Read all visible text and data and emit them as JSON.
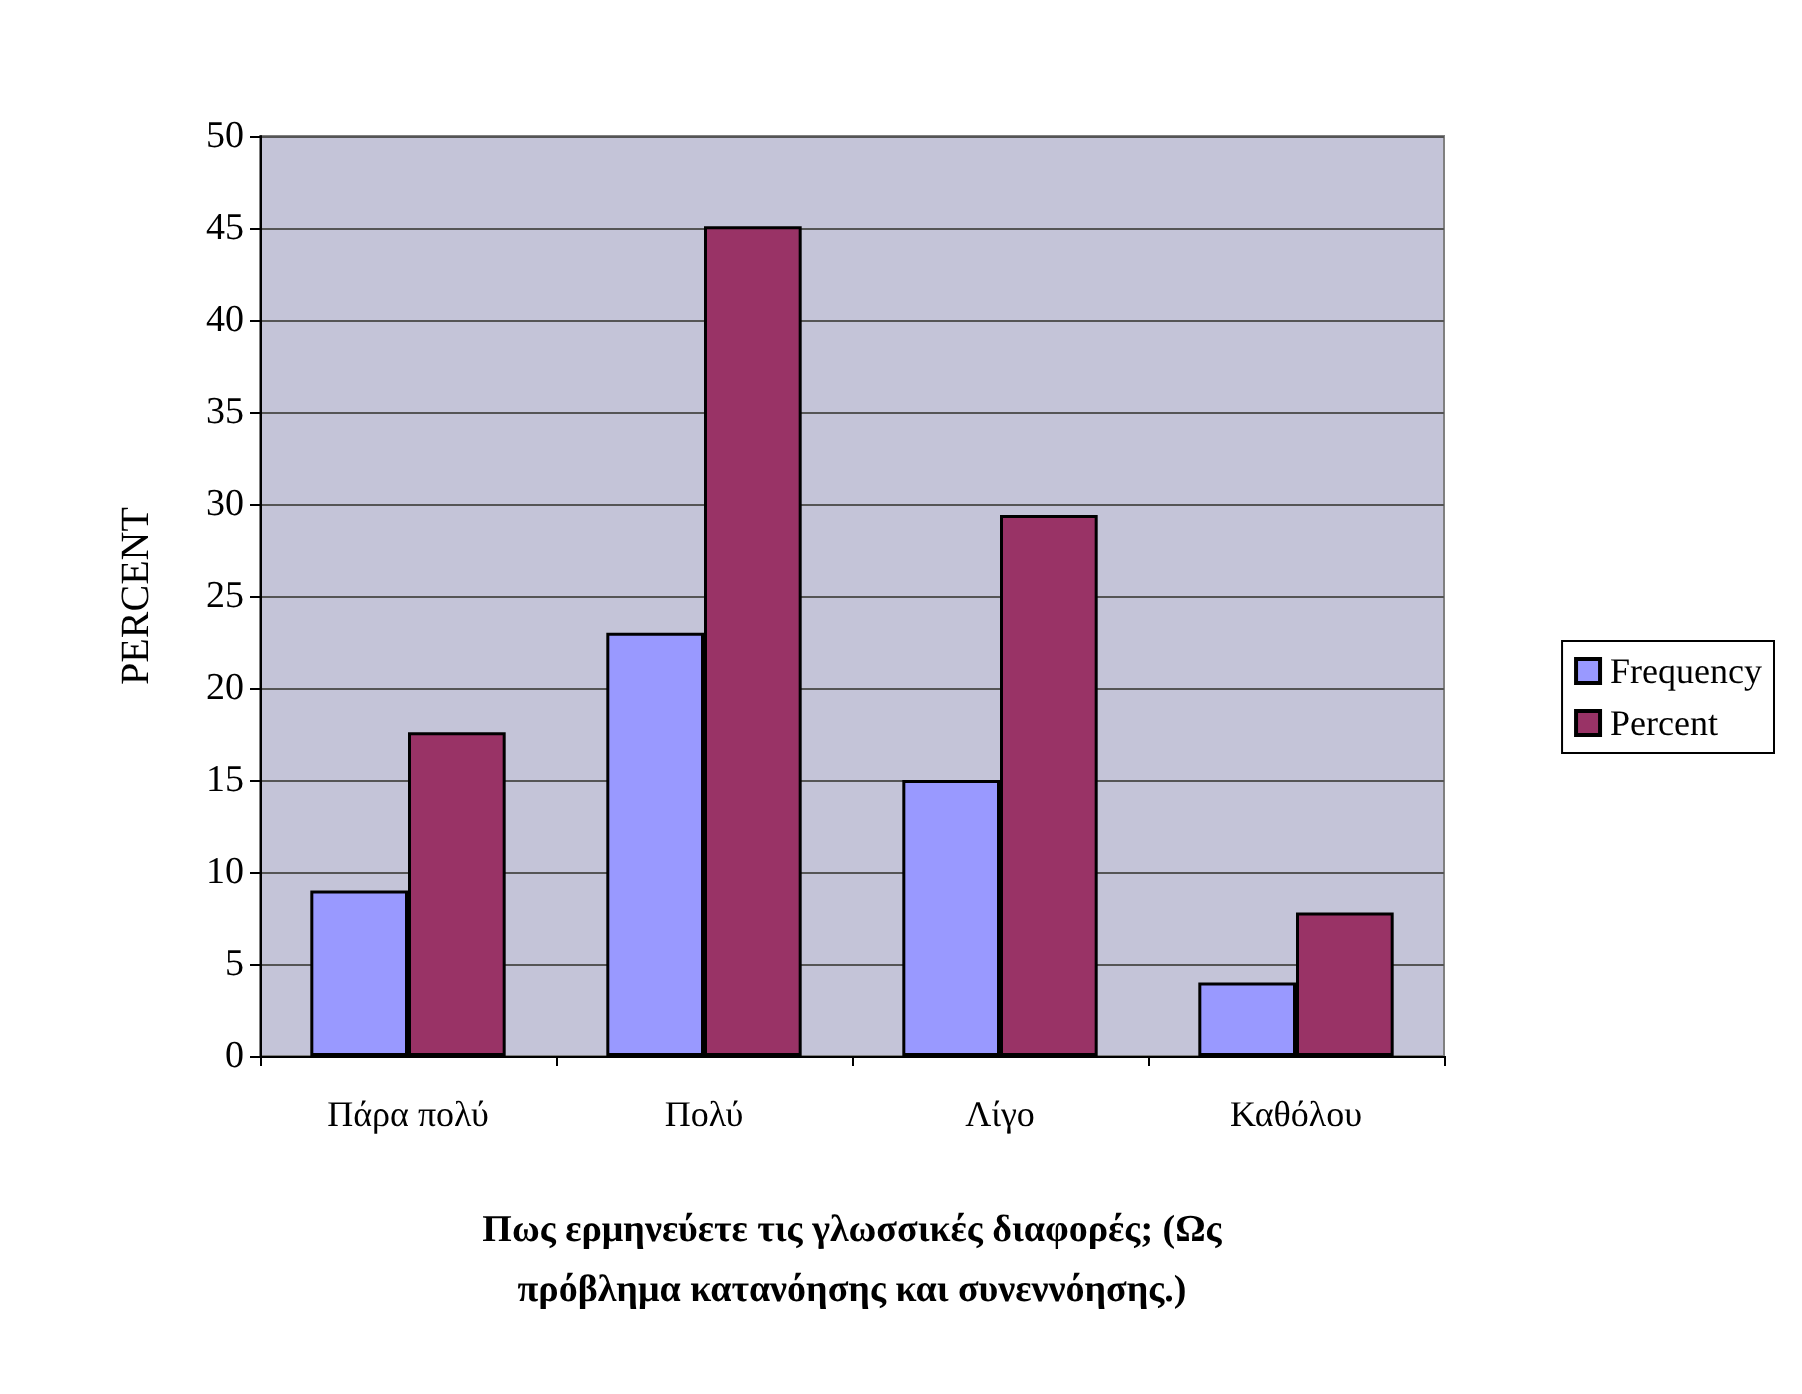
{
  "chart_data": {
    "type": "bar",
    "xlabel": "Πως ερμηνεύετε τις γλωσσικές διαφορές; (Ως\nπρόβλημα κατανόησης και συνεννόησης.)",
    "ylabel": "PERCENT",
    "categories": [
      "Πάρα πολύ",
      "Πολύ",
      "Λίγο",
      "Καθόλου"
    ],
    "series": [
      {
        "name": "Frequency",
        "color": "#9999ff",
        "values": [
          9,
          23,
          15,
          4
        ]
      },
      {
        "name": "Percent",
        "color": "#993366",
        "values": [
          17.6,
          45.1,
          29.4,
          7.8
        ]
      }
    ],
    "ylim": [
      0,
      50
    ],
    "yticks": [
      0,
      5,
      10,
      15,
      20,
      25,
      30,
      35,
      40,
      45,
      50
    ],
    "grid": "y",
    "legend": "right"
  }
}
